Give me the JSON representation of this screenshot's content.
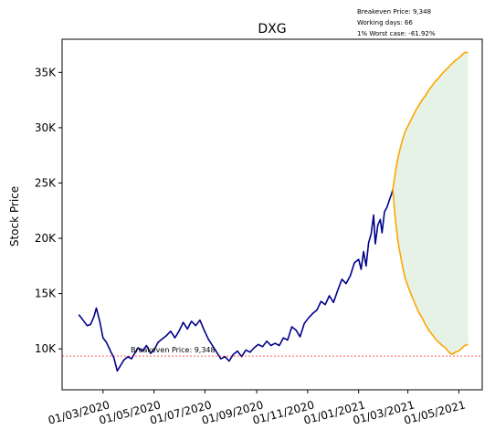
{
  "chart_data": {
    "type": "line",
    "title": "DXG",
    "ylabel": "Stock Price",
    "xlabel": "",
    "ylim": [
      6300,
      38000
    ],
    "xlim": [
      "2020-01-12",
      "2021-05-29"
    ],
    "x_ticks": [
      "2020-03-01",
      "2020-05-01",
      "2020-07-01",
      "2020-09-01",
      "2020-11-01",
      "2021-01-01",
      "2021-03-01",
      "2021-05-01"
    ],
    "x_tick_labels": [
      "01/03/2020",
      "01/05/2020",
      "01/07/2020",
      "01/09/2020",
      "01/11/2020",
      "01/01/2021",
      "01/03/2021",
      "01/05/2021"
    ],
    "y_ticks": [
      10000,
      15000,
      20000,
      25000,
      30000,
      35000
    ],
    "y_tick_labels": [
      "10K",
      "15K",
      "20K",
      "25K",
      "30K",
      "35K"
    ],
    "grid": false,
    "annotations": {
      "breakeven_line_label": "Breakeven Price: 9,348",
      "info_lines": [
        "Breakeven Price: 9,348",
        "Working days: 66",
        "1% Worst case: -61.92%"
      ]
    },
    "breakeven": {
      "value": 9348,
      "color": "#ff0000",
      "style": "dashed"
    },
    "series": [
      {
        "color": "#00008b",
        "points": [
          [
            "2020-02-01",
            13100
          ],
          [
            "2020-02-06",
            12600
          ],
          [
            "2020-02-11",
            12100
          ],
          [
            "2020-02-15",
            12200
          ],
          [
            "2020-02-19",
            12900
          ],
          [
            "2020-02-22",
            13700
          ],
          [
            "2020-02-26",
            12500
          ],
          [
            "2020-03-01",
            11000
          ],
          [
            "2020-03-05",
            10600
          ],
          [
            "2020-03-10",
            9800
          ],
          [
            "2020-03-14",
            9200
          ],
          [
            "2020-03-18",
            8000
          ],
          [
            "2020-03-22",
            8500
          ],
          [
            "2020-03-26",
            9000
          ],
          [
            "2020-03-31",
            9300
          ],
          [
            "2020-04-04",
            9100
          ],
          [
            "2020-04-08",
            9600
          ],
          [
            "2020-04-12",
            10100
          ],
          [
            "2020-04-17",
            9800
          ],
          [
            "2020-04-22",
            10300
          ],
          [
            "2020-04-27",
            9600
          ],
          [
            "2020-05-01",
            9900
          ],
          [
            "2020-05-06",
            10600
          ],
          [
            "2020-05-11",
            10900
          ],
          [
            "2020-05-16",
            11200
          ],
          [
            "2020-05-21",
            11600
          ],
          [
            "2020-05-26",
            11000
          ],
          [
            "2020-05-31",
            11600
          ],
          [
            "2020-06-05",
            12400
          ],
          [
            "2020-06-10",
            11800
          ],
          [
            "2020-06-15",
            12500
          ],
          [
            "2020-06-20",
            12100
          ],
          [
            "2020-06-25",
            12600
          ],
          [
            "2020-06-30",
            11700
          ],
          [
            "2020-07-05",
            10900
          ],
          [
            "2020-07-10",
            10300
          ],
          [
            "2020-07-15",
            9700
          ],
          [
            "2020-07-20",
            9100
          ],
          [
            "2020-07-25",
            9300
          ],
          [
            "2020-07-30",
            8900
          ],
          [
            "2020-08-04",
            9500
          ],
          [
            "2020-08-09",
            9800
          ],
          [
            "2020-08-14",
            9300
          ],
          [
            "2020-08-19",
            9900
          ],
          [
            "2020-08-24",
            9700
          ],
          [
            "2020-08-29",
            10100
          ],
          [
            "2020-09-03",
            10400
          ],
          [
            "2020-09-08",
            10200
          ],
          [
            "2020-09-13",
            10700
          ],
          [
            "2020-09-18",
            10300
          ],
          [
            "2020-09-23",
            10500
          ],
          [
            "2020-09-28",
            10300
          ],
          [
            "2020-10-03",
            11000
          ],
          [
            "2020-10-08",
            10800
          ],
          [
            "2020-10-13",
            12000
          ],
          [
            "2020-10-18",
            11700
          ],
          [
            "2020-10-23",
            11100
          ],
          [
            "2020-10-28",
            12300
          ],
          [
            "2020-11-02",
            12800
          ],
          [
            "2020-11-07",
            13200
          ],
          [
            "2020-11-12",
            13500
          ],
          [
            "2020-11-17",
            14300
          ],
          [
            "2020-11-22",
            14000
          ],
          [
            "2020-11-27",
            14800
          ],
          [
            "2020-12-02",
            14200
          ],
          [
            "2020-12-07",
            15300
          ],
          [
            "2020-12-12",
            16300
          ],
          [
            "2020-12-17",
            15900
          ],
          [
            "2020-12-22",
            16600
          ],
          [
            "2020-12-27",
            17800
          ],
          [
            "2021-01-01",
            18100
          ],
          [
            "2021-01-04",
            17200
          ],
          [
            "2021-01-07",
            18800
          ],
          [
            "2021-01-10",
            17500
          ],
          [
            "2021-01-13",
            19600
          ],
          [
            "2021-01-16",
            20400
          ],
          [
            "2021-01-19",
            22100
          ],
          [
            "2021-01-21",
            19500
          ],
          [
            "2021-01-24",
            21200
          ],
          [
            "2021-01-27",
            21700
          ],
          [
            "2021-01-29",
            20500
          ],
          [
            "2021-02-01",
            22400
          ],
          [
            "2021-02-04",
            22800
          ],
          [
            "2021-02-07",
            23500
          ],
          [
            "2021-02-09",
            23900
          ],
          [
            "2021-02-11",
            24400
          ]
        ]
      },
      {
        "name": "upper band",
        "color": "#ffa500",
        "points": [
          [
            "2021-02-11",
            24400
          ],
          [
            "2021-02-14",
            26000
          ],
          [
            "2021-02-17",
            27200
          ],
          [
            "2021-02-20",
            28200
          ],
          [
            "2021-02-23",
            29000
          ],
          [
            "2021-02-26",
            29700
          ],
          [
            "2021-03-02",
            30300
          ],
          [
            "2021-03-06",
            30900
          ],
          [
            "2021-03-10",
            31500
          ],
          [
            "2021-03-14",
            32000
          ],
          [
            "2021-03-18",
            32500
          ],
          [
            "2021-03-22",
            32900
          ],
          [
            "2021-03-26",
            33400
          ],
          [
            "2021-03-30",
            33800
          ],
          [
            "2021-04-03",
            34200
          ],
          [
            "2021-04-07",
            34500
          ],
          [
            "2021-04-11",
            34900
          ],
          [
            "2021-04-15",
            35200
          ],
          [
            "2021-04-19",
            35500
          ],
          [
            "2021-04-23",
            35800
          ],
          [
            "2021-04-27",
            36100
          ],
          [
            "2021-05-01",
            36300
          ],
          [
            "2021-05-05",
            36600
          ],
          [
            "2021-05-08",
            36800
          ],
          [
            "2021-05-12",
            36800
          ]
        ]
      },
      {
        "name": "lower band",
        "color": "#ffa500",
        "points": [
          [
            "2021-02-11",
            24400
          ],
          [
            "2021-02-14",
            21700
          ],
          [
            "2021-02-17",
            19800
          ],
          [
            "2021-02-20",
            18500
          ],
          [
            "2021-02-23",
            17300
          ],
          [
            "2021-02-26",
            16300
          ],
          [
            "2021-03-02",
            15500
          ],
          [
            "2021-03-06",
            14700
          ],
          [
            "2021-03-10",
            14000
          ],
          [
            "2021-03-14",
            13300
          ],
          [
            "2021-03-18",
            12800
          ],
          [
            "2021-03-22",
            12200
          ],
          [
            "2021-03-26",
            11700
          ],
          [
            "2021-03-30",
            11300
          ],
          [
            "2021-04-03",
            10900
          ],
          [
            "2021-04-07",
            10600
          ],
          [
            "2021-04-11",
            10300
          ],
          [
            "2021-04-15",
            10100
          ],
          [
            "2021-04-19",
            9700
          ],
          [
            "2021-04-23",
            9500
          ],
          [
            "2021-04-27",
            9700
          ],
          [
            "2021-05-01",
            9800
          ],
          [
            "2021-05-05",
            10100
          ],
          [
            "2021-05-08",
            10300
          ],
          [
            "2021-05-12",
            10400
          ]
        ]
      }
    ],
    "fill_between_color": "#e5f2e5"
  }
}
